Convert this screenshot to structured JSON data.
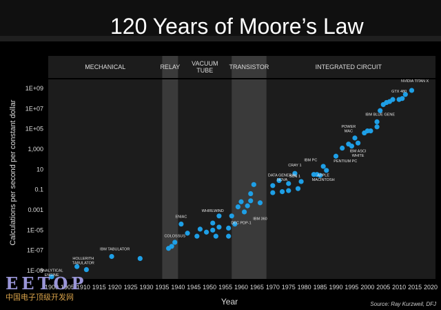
{
  "title": "120 Years of Moore’s Law",
  "watermark": {
    "logo": "EETOP",
    "subtitle": "中国电子顶级开发网"
  },
  "colors": {
    "point": "#1e9fe6",
    "panel": "#1c1c1c",
    "shade": "#3a3a3a",
    "text": "#dddddd",
    "background": "#000000"
  },
  "chart_data": {
    "type": "scatter",
    "title": "120 Years of Moore’s Law",
    "xlabel": "Year",
    "ylabel": "Calculations per second per constant dollar",
    "xlim": [
      1895,
      2020
    ],
    "ylim_log10": [
      -10,
      10
    ],
    "x_ticks": [
      1900,
      1905,
      1910,
      1915,
      1920,
      1925,
      1930,
      1935,
      1940,
      1945,
      1950,
      1955,
      1960,
      1965,
      1970,
      1975,
      1980,
      1985,
      1990,
      1995,
      2000,
      2005,
      2010,
      2015,
      2020
    ],
    "y_ticks": [
      {
        "label": "1E+09",
        "log": 9
      },
      {
        "label": "1E+07",
        "log": 7
      },
      {
        "label": "1E+05",
        "log": 5
      },
      {
        "label": "1,000",
        "log": 3
      },
      {
        "label": "10",
        "log": 1
      },
      {
        "label": "0.1",
        "log": -1
      },
      {
        "label": "0.001",
        "log": -3
      },
      {
        "label": "1E-05",
        "log": -5
      },
      {
        "label": "1E-07",
        "log": -7
      },
      {
        "label": "1E-09",
        "log": -9
      }
    ],
    "eras": [
      {
        "label": "MECHANICAL",
        "start": 1895,
        "end": 1935,
        "shaded": false
      },
      {
        "label": "RELAY",
        "start": 1935,
        "end": 1940,
        "shaded": true
      },
      {
        "label": "VACUUM TUBE",
        "start": 1940,
        "end": 1957,
        "shaded": false
      },
      {
        "label": "TRANSISTOR",
        "start": 1957,
        "end": 1968,
        "shaded": true
      },
      {
        "label": "INTEGRATED CIRCUIT",
        "start": 1968,
        "end": 2020,
        "shaded": false
      }
    ],
    "points": [
      {
        "x": 1900,
        "y": -9.6
      },
      {
        "x": 1908,
        "y": -8.6
      },
      {
        "x": 1911,
        "y": -8.9
      },
      {
        "x": 1919,
        "y": -7.6
      },
      {
        "x": 1928,
        "y": -7.8
      },
      {
        "x": 1937,
        "y": -6.8
      },
      {
        "x": 1938,
        "y": -6.6
      },
      {
        "x": 1939,
        "y": -6.2
      },
      {
        "x": 1941,
        "y": -4.4
      },
      {
        "x": 1943,
        "y": -5.3
      },
      {
        "x": 1946,
        "y": -5.6
      },
      {
        "x": 1947,
        "y": -4.9
      },
      {
        "x": 1949,
        "y": -5.2
      },
      {
        "x": 1951,
        "y": -4.3
      },
      {
        "x": 1951,
        "y": -5.0
      },
      {
        "x": 1952,
        "y": -5.6
      },
      {
        "x": 1953,
        "y": -4.7
      },
      {
        "x": 1953,
        "y": -3.6
      },
      {
        "x": 1956,
        "y": -4.8
      },
      {
        "x": 1956,
        "y": -5.6
      },
      {
        "x": 1957,
        "y": -3.6
      },
      {
        "x": 1958,
        "y": -4.4
      },
      {
        "x": 1959,
        "y": -2.7
      },
      {
        "x": 1960,
        "y": -2.2
      },
      {
        "x": 1961,
        "y": -3.2
      },
      {
        "x": 1962,
        "y": -2.6
      },
      {
        "x": 1963,
        "y": -1.4
      },
      {
        "x": 1963,
        "y": -2.1
      },
      {
        "x": 1964,
        "y": -0.5
      },
      {
        "x": 1966,
        "y": -2.3
      },
      {
        "x": 1970,
        "y": -1.3
      },
      {
        "x": 1970,
        "y": -0.6
      },
      {
        "x": 1972,
        "y": -0.1
      },
      {
        "x": 1973,
        "y": -1.2
      },
      {
        "x": 1975,
        "y": -1.1
      },
      {
        "x": 1975,
        "y": -0.4
      },
      {
        "x": 1977,
        "y": 0.6
      },
      {
        "x": 1978,
        "y": -0.9
      },
      {
        "x": 1979,
        "y": -0.2
      },
      {
        "x": 1983,
        "y": 0.5
      },
      {
        "x": 1984,
        "y": 0.5
      },
      {
        "x": 1985,
        "y": 0.4
      },
      {
        "x": 1986,
        "y": 1.3
      },
      {
        "x": 1987,
        "y": 0.9
      },
      {
        "x": 1990,
        "y": 2.3
      },
      {
        "x": 1992,
        "y": 3.1
      },
      {
        "x": 1994,
        "y": 3.5
      },
      {
        "x": 1995,
        "y": 3.3
      },
      {
        "x": 1996,
        "y": 4.1
      },
      {
        "x": 1997,
        "y": 3.6
      },
      {
        "x": 1999,
        "y": 4.6
      },
      {
        "x": 2000,
        "y": 4.8
      },
      {
        "x": 2001,
        "y": 4.8
      },
      {
        "x": 2003,
        "y": 5.2
      },
      {
        "x": 2003,
        "y": 5.7
      },
      {
        "x": 2004,
        "y": 6.8
      },
      {
        "x": 2005,
        "y": 7.4
      },
      {
        "x": 2006,
        "y": 7.6
      },
      {
        "x": 2007,
        "y": 7.7
      },
      {
        "x": 2008,
        "y": 7.9
      },
      {
        "x": 2010,
        "y": 7.9
      },
      {
        "x": 2011,
        "y": 8.0
      },
      {
        "x": 2012,
        "y": 8.4
      },
      {
        "x": 2014,
        "y": 8.8
      }
    ],
    "annotations": [
      {
        "text": "ANALYTICAL ENGINE",
        "x": 1900,
        "y": -9.1,
        "lines": [
          "ANALYTICAL",
          "ENGINE"
        ]
      },
      {
        "text": "HOLLERITH TABULATOR",
        "x": 1910,
        "y": -7.9,
        "lines": [
          "HOLLERITH",
          "TABULATOR"
        ]
      },
      {
        "text": "IBM TABULATOR",
        "x": 1920,
        "y": -7.0,
        "lines": [
          "IBM TABULATOR"
        ]
      },
      {
        "text": "ENIAC",
        "x": 1941,
        "y": -3.8,
        "lines": [
          "ENIAC"
        ]
      },
      {
        "text": "COLOSSUS",
        "x": 1939,
        "y": -5.7,
        "lines": [
          "COLOSSUS"
        ]
      },
      {
        "text": "WHIRLWIND",
        "x": 1951,
        "y": -3.2,
        "lines": [
          "WHIRLWIND"
        ]
      },
      {
        "text": "DEC PDP-1",
        "x": 1960,
        "y": -4.4,
        "lines": [
          "DEC PDP-1"
        ]
      },
      {
        "text": "IBM 360",
        "x": 1966,
        "y": -4.0,
        "lines": [
          "IBM 360"
        ]
      },
      {
        "text": "DATA GENERAL NOVA",
        "x": 1973,
        "y": 0.3,
        "lines": [
          "DATA GENERAL",
          "NOVA"
        ]
      },
      {
        "text": "CRAY 1",
        "x": 1977,
        "y": 1.3,
        "lines": [
          "CRAY 1"
        ]
      },
      {
        "text": "SUN 1",
        "x": 1977,
        "y": 0.2,
        "lines": [
          "SUN 1"
        ]
      },
      {
        "text": "IBM PC",
        "x": 1982,
        "y": 1.8,
        "lines": [
          "IBM PC"
        ]
      },
      {
        "text": "APPLE MACINTOSH",
        "x": 1986,
        "y": 0.3,
        "lines": [
          "APPLE",
          "MACINTOSH"
        ]
      },
      {
        "text": "PENTIUM PC",
        "x": 1993,
        "y": 1.7,
        "lines": [
          "PENTIUM PC"
        ]
      },
      {
        "text": "POWER MAC",
        "x": 1994,
        "y": 5.1,
        "lines": [
          "POWER",
          "MAC"
        ]
      },
      {
        "text": "IBM ASCI WHITE",
        "x": 1997,
        "y": 2.7,
        "lines": [
          "IBM ASCI",
          "WHITE"
        ]
      },
      {
        "text": "IBM BLUE GENE",
        "x": 2004,
        "y": 6.3,
        "lines": [
          "IBM BLUE GENE"
        ]
      },
      {
        "text": "GTX 480",
        "x": 2010,
        "y": 8.6,
        "lines": [
          "GTX 480"
        ]
      },
      {
        "text": "NVIDIA TITAN X",
        "x": 2015,
        "y": 9.6,
        "lines": [
          "NVIDIA TITAN X"
        ]
      }
    ],
    "source": "Source: Ray Kurzweil, DFJ"
  }
}
